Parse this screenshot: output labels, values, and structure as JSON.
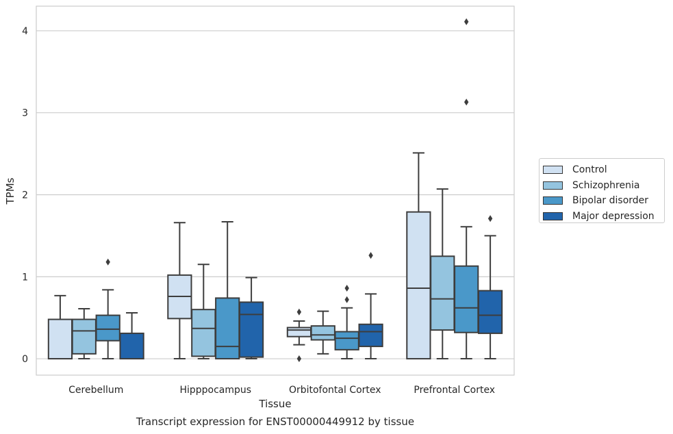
{
  "chart_data": {
    "type": "box",
    "title": "Transcript expression for ENST00000449912 by tissue",
    "xlabel": "Tissue",
    "ylabel": "TPMs",
    "ylim": [
      -0.2,
      4.3
    ],
    "yticks": [
      0,
      1,
      2,
      3,
      4
    ],
    "grid": "horizontal",
    "legend_position": "right",
    "categories": [
      "Cerebellum",
      "Hipppocampus",
      "Orbitofontal Cortex",
      "Prefrontal Cortex"
    ],
    "series": [
      {
        "name": "Control",
        "color": "#d0e1f2",
        "boxes": [
          {
            "whislo": 0,
            "q1": 0,
            "med": 0,
            "q3": 0.48,
            "whishi": 0.77,
            "fliers": []
          },
          {
            "whislo": 0,
            "q1": 0.49,
            "med": 0.76,
            "q3": 1.02,
            "whishi": 1.66,
            "fliers": []
          },
          {
            "whislo": 0.17,
            "q1": 0.27,
            "med": 0.35,
            "q3": 0.38,
            "whishi": 0.46,
            "fliers": [
              0.57,
              0.0
            ]
          },
          {
            "whislo": 0,
            "q1": 0,
            "med": 0.86,
            "q3": 1.79,
            "whishi": 2.51,
            "fliers": []
          }
        ]
      },
      {
        "name": "Schizophrenia",
        "color": "#94c4df",
        "boxes": [
          {
            "whislo": 0,
            "q1": 0.06,
            "med": 0.34,
            "q3": 0.48,
            "whishi": 0.61,
            "fliers": []
          },
          {
            "whislo": 0,
            "q1": 0.03,
            "med": 0.37,
            "q3": 0.6,
            "whishi": 1.15,
            "fliers": []
          },
          {
            "whislo": 0.06,
            "q1": 0.23,
            "med": 0.29,
            "q3": 0.4,
            "whishi": 0.58,
            "fliers": []
          },
          {
            "whislo": 0,
            "q1": 0.35,
            "med": 0.73,
            "q3": 1.25,
            "whishi": 2.07,
            "fliers": []
          }
        ]
      },
      {
        "name": "Bipolar disorder",
        "color": "#4a98c9",
        "boxes": [
          {
            "whislo": 0,
            "q1": 0.22,
            "med": 0.36,
            "q3": 0.53,
            "whishi": 0.84,
            "fliers": [
              1.18
            ]
          },
          {
            "whislo": 0,
            "q1": 0,
            "med": 0.15,
            "q3": 0.74,
            "whishi": 1.67,
            "fliers": []
          },
          {
            "whislo": 0,
            "q1": 0.11,
            "med": 0.25,
            "q3": 0.33,
            "whishi": 0.62,
            "fliers": [
              0.72,
              0.86
            ]
          },
          {
            "whislo": 0,
            "q1": 0.32,
            "med": 0.62,
            "q3": 1.13,
            "whishi": 1.61,
            "fliers": [
              3.13,
              4.11
            ]
          }
        ]
      },
      {
        "name": "Major depression",
        "color": "#2164ab",
        "boxes": [
          {
            "whislo": 0,
            "q1": 0,
            "med": 0,
            "q3": 0.31,
            "whishi": 0.56,
            "fliers": []
          },
          {
            "whislo": 0,
            "q1": 0.02,
            "med": 0.54,
            "q3": 0.69,
            "whishi": 0.99,
            "fliers": []
          },
          {
            "whislo": 0,
            "q1": 0.15,
            "med": 0.33,
            "q3": 0.42,
            "whishi": 0.79,
            "fliers": [
              1.26
            ]
          },
          {
            "whislo": 0,
            "q1": 0.31,
            "med": 0.53,
            "q3": 0.83,
            "whishi": 1.5,
            "fliers": [
              1.71
            ]
          }
        ]
      }
    ]
  }
}
